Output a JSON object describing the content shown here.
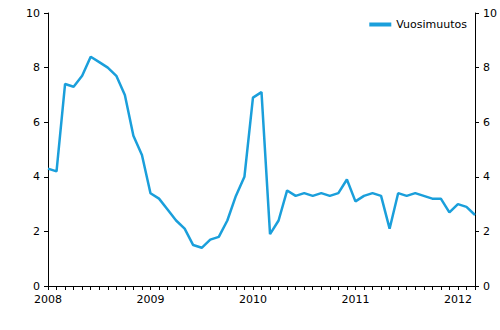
{
  "chart_data": {
    "type": "line",
    "categories": [
      "2008",
      null,
      null,
      null,
      null,
      null,
      null,
      null,
      null,
      null,
      null,
      null,
      "2009",
      null,
      null,
      null,
      null,
      null,
      null,
      null,
      null,
      null,
      null,
      null,
      "2010",
      null,
      null,
      null,
      null,
      null,
      null,
      null,
      null,
      null,
      null,
      null,
      "2011",
      null,
      null,
      null,
      null,
      null,
      null,
      null,
      null,
      null,
      null,
      null,
      "2012",
      null,
      null
    ],
    "series": [
      {
        "name": "Vuosimuutos",
        "color": "#1a9fdb",
        "values": [
          4.3,
          4.2,
          7.4,
          7.3,
          7.7,
          8.4,
          8.2,
          8.0,
          7.7,
          7.0,
          5.5,
          4.8,
          3.4,
          3.2,
          2.8,
          2.4,
          2.1,
          1.5,
          1.4,
          1.7,
          1.8,
          2.4,
          3.3,
          4.0,
          6.9,
          7.1,
          1.9,
          2.4,
          3.5,
          3.3,
          3.4,
          3.3,
          3.4,
          3.3,
          3.4,
          3.9,
          3.1,
          3.3,
          3.4,
          3.3,
          2.1,
          3.4,
          3.3,
          3.4,
          3.3,
          3.2,
          3.2,
          2.7,
          3.0,
          2.9,
          2.6
        ]
      }
    ],
    "ylim": [
      0,
      10
    ],
    "yticks": [
      0,
      2,
      4,
      6,
      8,
      10
    ],
    "y2lim": [
      0,
      10
    ],
    "y2ticks": [
      0,
      2,
      4,
      6,
      8,
      10
    ],
    "grid": false,
    "legend": "upper right"
  }
}
